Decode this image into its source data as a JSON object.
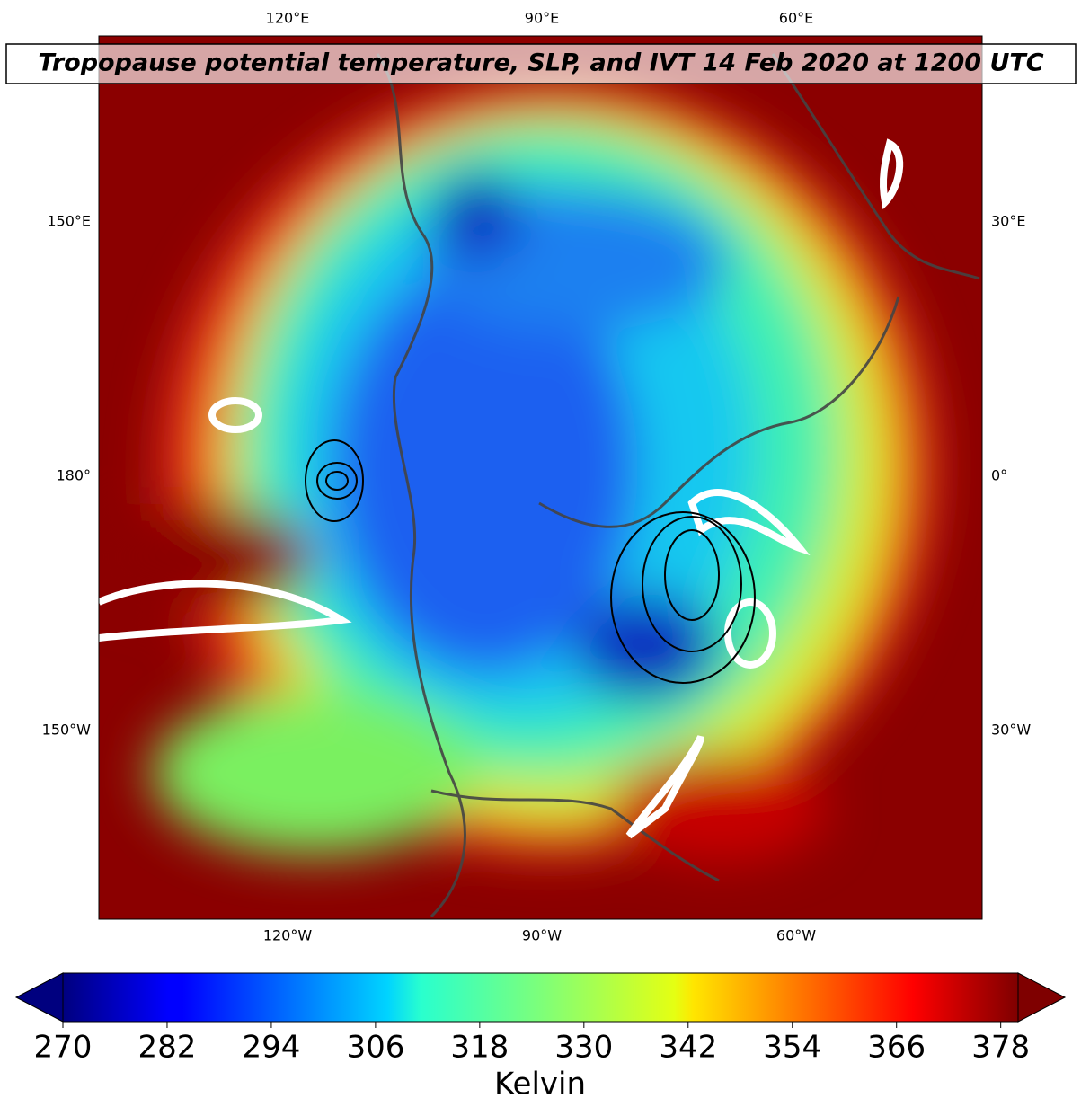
{
  "title": "Tropopause potential temperature, SLP, and IVT 14 Feb 2020 at 1200 UTC",
  "map": {
    "top_labels": [
      "120°E",
      "90°E",
      "60°E"
    ],
    "bottom_labels": [
      "120°W",
      "90°W",
      "60°W"
    ],
    "left_labels": [
      "150°E",
      "180°",
      "150°W"
    ],
    "right_labels": [
      "30°E",
      "0°",
      "30°W"
    ]
  },
  "colorbar": {
    "label": "Kelvin",
    "lim": [
      270,
      380
    ],
    "ticks": [
      270,
      282,
      294,
      306,
      318,
      330,
      342,
      354,
      366,
      378
    ]
  }
}
